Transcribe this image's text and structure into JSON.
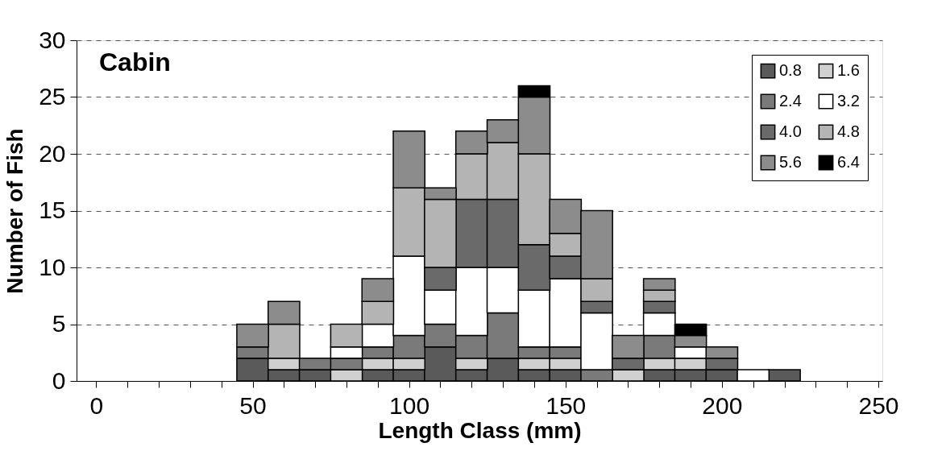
{
  "chart_data": {
    "type": "bar",
    "stacked": true,
    "title": "Cabin",
    "xlabel": "Length Class (mm)",
    "ylabel": "Number of Fish",
    "x": [
      50,
      60,
      70,
      80,
      90,
      100,
      110,
      120,
      130,
      140,
      150,
      160,
      170,
      180,
      190,
      200,
      210,
      220
    ],
    "series": [
      {
        "name": "0.8",
        "color": "#5a5a5a",
        "values": [
          2,
          1,
          1,
          0,
          1,
          1,
          3,
          1,
          2,
          1,
          1,
          0,
          0,
          1,
          1,
          1,
          0,
          1
        ]
      },
      {
        "name": "1.6",
        "color": "#d0d0d0",
        "values": [
          0,
          1,
          0,
          1,
          1,
          1,
          0,
          1,
          0,
          1,
          1,
          0,
          1,
          1,
          1,
          0,
          0,
          0
        ]
      },
      {
        "name": "2.4",
        "color": "#7a7a7a",
        "values": [
          1,
          0,
          1,
          1,
          1,
          2,
          2,
          2,
          4,
          1,
          1,
          1,
          0,
          2,
          0,
          0,
          0,
          0
        ]
      },
      {
        "name": "3.2",
        "color": "#ffffff",
        "values": [
          0,
          0,
          0,
          1,
          2,
          7,
          3,
          6,
          4,
          5,
          6,
          5,
          0,
          2,
          1,
          0,
          1,
          0
        ]
      },
      {
        "name": "4.0",
        "color": "#6a6a6a",
        "values": [
          0,
          0,
          0,
          0,
          0,
          0,
          2,
          6,
          6,
          4,
          2,
          1,
          1,
          1,
          0,
          1,
          0,
          0
        ]
      },
      {
        "name": "4.8",
        "color": "#b4b4b4",
        "values": [
          0,
          3,
          0,
          2,
          2,
          6,
          6,
          4,
          5,
          8,
          2,
          2,
          0,
          1,
          0,
          0,
          0,
          0
        ]
      },
      {
        "name": "5.6",
        "color": "#8c8c8c",
        "values": [
          2,
          2,
          0,
          0,
          2,
          5,
          1,
          2,
          2,
          5,
          3,
          6,
          2,
          1,
          1,
          1,
          0,
          0
        ]
      },
      {
        "name": "6.4",
        "color": "#000000",
        "values": [
          0,
          0,
          0,
          0,
          0,
          0,
          0,
          0,
          0,
          1,
          0,
          0,
          0,
          0,
          1,
          0,
          0,
          0
        ]
      }
    ],
    "xlim": [
      -5,
      250
    ],
    "xticks": [
      0,
      {
        "value": 10,
        "label": null
      },
      {
        "value": 20,
        "label": null
      },
      {
        "value": 30,
        "label": null
      },
      {
        "value": 40,
        "label": null
      },
      50,
      {
        "value": 60,
        "label": null
      },
      {
        "value": 70,
        "label": null
      },
      {
        "value": 80,
        "label": null
      },
      {
        "value": 90,
        "label": null
      },
      100,
      {
        "value": 110,
        "label": null
      },
      {
        "value": 120,
        "label": null
      },
      {
        "value": 130,
        "label": null
      },
      {
        "value": 140,
        "label": null
      },
      150,
      {
        "value": 160,
        "label": null
      },
      {
        "value": 170,
        "label": null
      },
      {
        "value": 180,
        "label": null
      },
      {
        "value": 190,
        "label": null
      },
      200,
      {
        "value": 210,
        "label": null
      },
      {
        "value": 220,
        "label": null
      },
      {
        "value": 230,
        "label": null
      },
      {
        "value": 240,
        "label": null
      },
      250
    ],
    "ylim": [
      0,
      30
    ],
    "yticks": [
      0,
      5,
      10,
      15,
      20,
      25,
      30
    ],
    "grid": "y",
    "legend": "top right"
  }
}
